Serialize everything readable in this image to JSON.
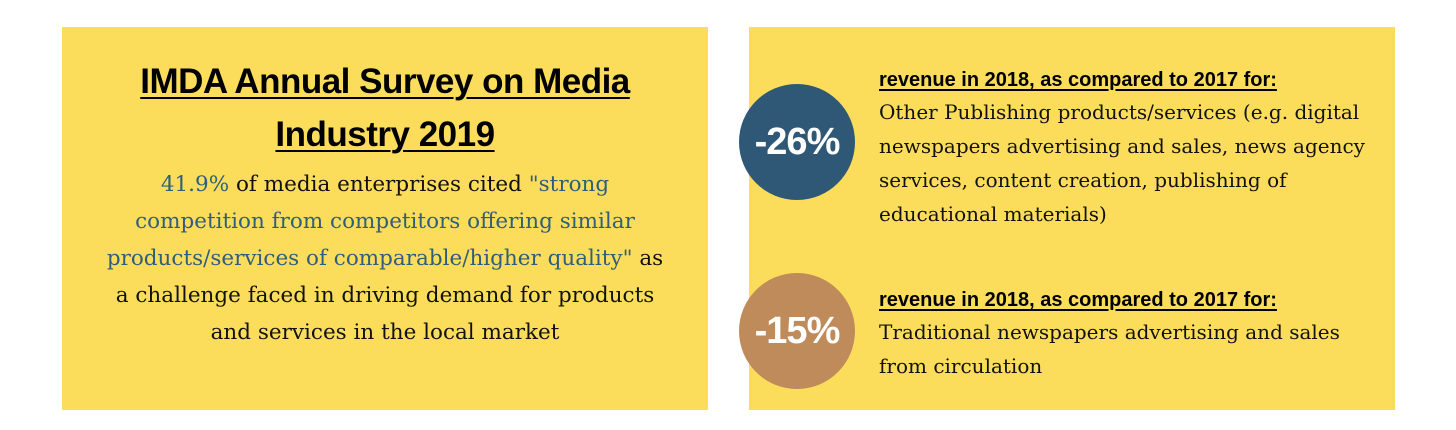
{
  "left": {
    "title": "IMDA Annual Survey on Media Industry 2019",
    "body": [
      "41.9%",
      " of media enterprises cited ",
      "\"strong competition from competitors offering similar products/services of comparable/higher quality\"",
      " as a challenge faced in driving demand for products and services in the local market"
    ]
  },
  "right": {
    "items": [
      {
        "stat": "-26%",
        "heading": "revenue in 2018, as compared to 2017 for:",
        "text": "Other Publishing products/services (e.g. digital newspapers advertising and sales, news agency services, content creation, publishing of educational materials)"
      },
      {
        "stat": "-15%",
        "heading": "revenue in 2018, as compared to 2017 for:",
        "text": "Traditional newspapers advertising and sales from circulation"
      }
    ]
  }
}
